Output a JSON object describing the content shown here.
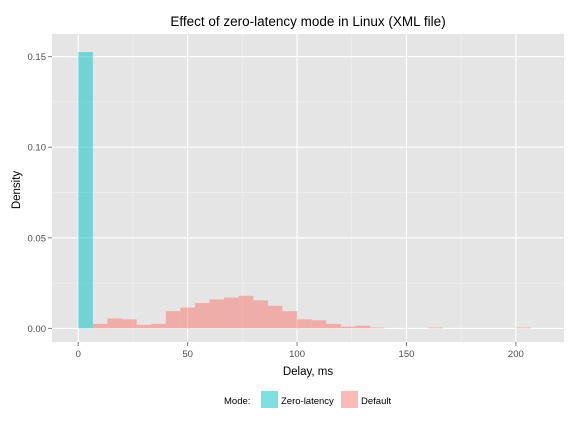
{
  "chart_data": {
    "type": "bar",
    "title": "Effect of zero-latency mode in Linux (XML file)",
    "xlabel": "Delay, ms",
    "ylabel": "Density",
    "xlim": [
      -12,
      222
    ],
    "ylim": [
      -0.0075,
      0.1625
    ],
    "x_ticks": [
      0,
      50,
      100,
      150,
      200
    ],
    "y_ticks": [
      0.0,
      0.05,
      0.1,
      0.15
    ],
    "x_tick_labels": [
      "0",
      "50",
      "100",
      "150",
      "200"
    ],
    "y_tick_labels": [
      "0.00",
      "0.05",
      "0.10",
      "0.15"
    ],
    "grid": true,
    "legend_position": "bottom",
    "legend_title": "Mode:",
    "bin_width": 6.67,
    "series": [
      {
        "name": "Zero-latency",
        "color": "#00bfc4",
        "bins": [
          {
            "x": 0,
            "y": 0.1525
          }
        ]
      },
      {
        "name": "Default",
        "color": "#f8766d",
        "bins": [
          {
            "x": 6.67,
            "y": 0.0025
          },
          {
            "x": 13.33,
            "y": 0.0055
          },
          {
            "x": 20,
            "y": 0.005
          },
          {
            "x": 26.67,
            "y": 0.002
          },
          {
            "x": 33.33,
            "y": 0.0025
          },
          {
            "x": 40,
            "y": 0.0095
          },
          {
            "x": 46.67,
            "y": 0.0115
          },
          {
            "x": 53.33,
            "y": 0.014
          },
          {
            "x": 60,
            "y": 0.016
          },
          {
            "x": 66.67,
            "y": 0.017
          },
          {
            "x": 73.33,
            "y": 0.018
          },
          {
            "x": 80,
            "y": 0.0155
          },
          {
            "x": 86.67,
            "y": 0.0125
          },
          {
            "x": 93.33,
            "y": 0.0095
          },
          {
            "x": 100,
            "y": 0.005
          },
          {
            "x": 106.67,
            "y": 0.0045
          },
          {
            "x": 113.33,
            "y": 0.0025
          },
          {
            "x": 120,
            "y": 0.001
          },
          {
            "x": 126.67,
            "y": 0.0015
          },
          {
            "x": 133.33,
            "y": 0.0005
          },
          {
            "x": 160,
            "y": 0.0005
          },
          {
            "x": 200,
            "y": 0.0005
          }
        ]
      }
    ]
  }
}
